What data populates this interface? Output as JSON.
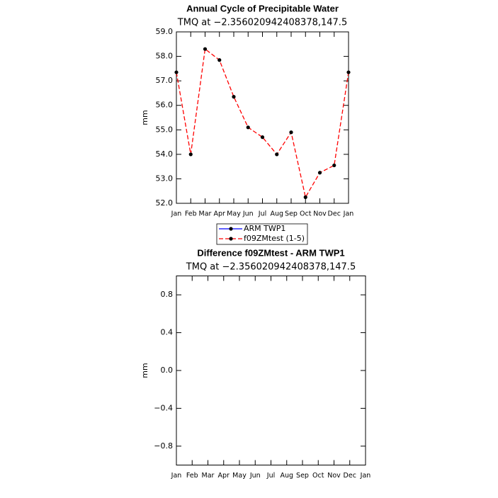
{
  "chart_data": [
    {
      "type": "line",
      "title": "Annual Cycle of Precipitable Water",
      "subtitle": "TMQ at −2.356020942408378,147.5",
      "ylabel": "mm",
      "categories": [
        "Jan",
        "Feb",
        "Mar",
        "Apr",
        "May",
        "Jun",
        "Jul",
        "Aug",
        "Sep",
        "Oct",
        "Nov",
        "Dec",
        "Jan"
      ],
      "series": [
        {
          "name": "ARM TWP1",
          "color": "#0000ff",
          "dashed": false,
          "values": [
            null,
            null,
            null,
            null,
            null,
            null,
            null,
            null,
            null,
            null,
            null,
            null,
            null
          ]
        },
        {
          "name": "f09ZMtest (1-5)",
          "color": "#ff0000",
          "dashed": true,
          "values": [
            57.35,
            54.0,
            58.3,
            57.85,
            56.35,
            55.1,
            54.7,
            54.0,
            54.9,
            52.25,
            53.25,
            53.55,
            57.35
          ]
        }
      ],
      "ylim": [
        52,
        59
      ],
      "yticks": [
        {
          "value": 52,
          "label": "52.0"
        },
        {
          "value": 53,
          "label": "53.0"
        },
        {
          "value": 54,
          "label": "54.0"
        },
        {
          "value": 55,
          "label": "55.0"
        },
        {
          "value": 56,
          "label": "56.0"
        },
        {
          "value": 57,
          "label": "57.0"
        },
        {
          "value": 58,
          "label": "58.0"
        },
        {
          "value": 59,
          "label": "59.0"
        }
      ],
      "legend": "below"
    },
    {
      "type": "line",
      "title": "Difference f09ZMtest - ARM TWP1",
      "subtitle": "TMQ at −2.356020942408378,147.5",
      "ylabel": "mm",
      "categories": [
        "Jan",
        "Feb",
        "Mar",
        "Apr",
        "May",
        "Jun",
        "Jul",
        "Aug",
        "Sep",
        "Oct",
        "Nov",
        "Dec",
        "Jan"
      ],
      "ylim": [
        -1,
        1
      ],
      "yticks": [
        {
          "value": -0.8,
          "label": "−0.8"
        },
        {
          "value": -0.4,
          "label": "−0.4"
        },
        {
          "value": 0,
          "label": "0.0"
        },
        {
          "value": 0.4,
          "label": "0.4"
        },
        {
          "value": 0.8,
          "label": "0.8"
        }
      ]
    }
  ]
}
